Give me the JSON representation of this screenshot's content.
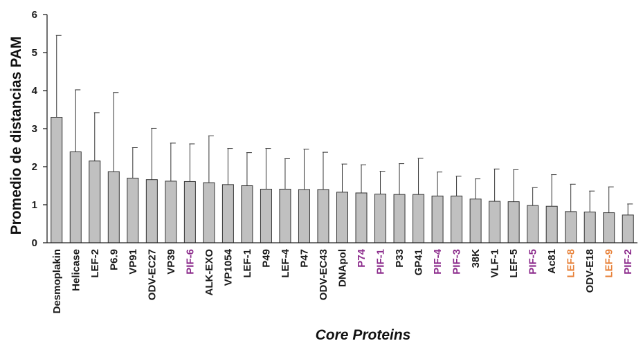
{
  "chart_data": {
    "type": "bar",
    "title": "",
    "xlabel": "Core Proteins",
    "ylabel": "Promedio de distancias PAM",
    "ylim": [
      0,
      6
    ],
    "yticks": [
      0,
      1,
      2,
      3,
      4,
      5,
      6
    ],
    "grid": false,
    "legend": "none",
    "bar_color": "#c0c0c0",
    "label_colors": {
      "default": "#1a1a1a",
      "pif": "#8b2a8b",
      "lef": "#e8823a"
    },
    "categories": [
      {
        "label": "Desmoplakin",
        "value": 3.3,
        "error": 2.15,
        "color": "default"
      },
      {
        "label": "Helicase",
        "value": 2.39,
        "error": 1.63,
        "color": "default"
      },
      {
        "label": "LEF-2",
        "value": 2.15,
        "error": 1.27,
        "color": "default"
      },
      {
        "label": "P6.9",
        "value": 1.87,
        "error": 2.08,
        "color": "default"
      },
      {
        "label": "VP91",
        "value": 1.7,
        "error": 0.8,
        "color": "default"
      },
      {
        "label": "ODV-EC27",
        "value": 1.66,
        "error": 1.35,
        "color": "default"
      },
      {
        "label": "VP39",
        "value": 1.62,
        "error": 1.0,
        "color": "default"
      },
      {
        "label": "PIF-6",
        "value": 1.61,
        "error": 0.99,
        "color": "pif"
      },
      {
        "label": "ALK-EXO",
        "value": 1.58,
        "error": 1.23,
        "color": "default"
      },
      {
        "label": "VP1054",
        "value": 1.53,
        "error": 0.95,
        "color": "default"
      },
      {
        "label": "LEF-1",
        "value": 1.5,
        "error": 0.87,
        "color": "default"
      },
      {
        "label": "P49",
        "value": 1.41,
        "error": 1.07,
        "color": "default"
      },
      {
        "label": "LEF-4",
        "value": 1.41,
        "error": 0.8,
        "color": "default"
      },
      {
        "label": "P47",
        "value": 1.4,
        "error": 1.06,
        "color": "default"
      },
      {
        "label": "ODV-EC43",
        "value": 1.4,
        "error": 0.98,
        "color": "default"
      },
      {
        "label": "DNApol",
        "value": 1.33,
        "error": 0.74,
        "color": "default"
      },
      {
        "label": "P74",
        "value": 1.31,
        "error": 0.74,
        "color": "pif"
      },
      {
        "label": "PIF-1",
        "value": 1.28,
        "error": 0.6,
        "color": "pif"
      },
      {
        "label": "P33",
        "value": 1.27,
        "error": 0.81,
        "color": "default"
      },
      {
        "label": "GP41",
        "value": 1.27,
        "error": 0.95,
        "color": "default"
      },
      {
        "label": "PIF-4",
        "value": 1.23,
        "error": 0.63,
        "color": "pif"
      },
      {
        "label": "PIF-3",
        "value": 1.23,
        "error": 0.52,
        "color": "pif"
      },
      {
        "label": "38K",
        "value": 1.15,
        "error": 0.53,
        "color": "default"
      },
      {
        "label": "VLF-1",
        "value": 1.09,
        "error": 0.85,
        "color": "default"
      },
      {
        "label": "LEF-5",
        "value": 1.08,
        "error": 0.84,
        "color": "default"
      },
      {
        "label": "PIF-5",
        "value": 0.98,
        "error": 0.47,
        "color": "pif"
      },
      {
        "label": "Ac81",
        "value": 0.96,
        "error": 0.83,
        "color": "default"
      },
      {
        "label": "LEF-8",
        "value": 0.82,
        "error": 0.72,
        "color": "lef"
      },
      {
        "label": "ODV-E18",
        "value": 0.81,
        "error": 0.55,
        "color": "default"
      },
      {
        "label": "LEF-9",
        "value": 0.79,
        "error": 0.68,
        "color": "lef"
      },
      {
        "label": "PIF-2",
        "value": 0.73,
        "error": 0.29,
        "color": "pif"
      }
    ]
  }
}
